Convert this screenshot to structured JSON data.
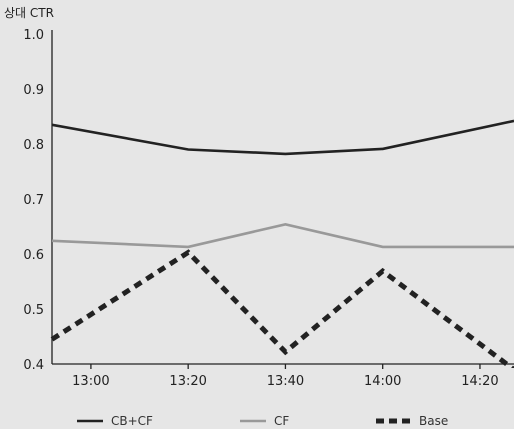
{
  "chart_data": {
    "type": "line",
    "ylabel": "상대 CTR",
    "xlabel": "",
    "x": [
      "13:00",
      "13:20",
      "13:40",
      "14:00",
      "14:20"
    ],
    "x_range": [
      "12:52",
      "14:27"
    ],
    "ylim": [
      0.4,
      1.0
    ],
    "yticks": [
      "1.0",
      "0.9",
      "0.8",
      "0.7",
      "0.6",
      "0.5",
      "0.4"
    ],
    "grid": false,
    "legend_position": "bottom",
    "series": [
      {
        "name": "CB+CF",
        "color": "#222222",
        "style": "solid",
        "points": [
          [
            "12:52",
            0.835
          ],
          [
            "13:20",
            0.79
          ],
          [
            "13:40",
            0.782
          ],
          [
            "14:00",
            0.791
          ],
          [
            "14:27",
            0.842
          ]
        ]
      },
      {
        "name": "CF",
        "color": "#999999",
        "style": "solid",
        "points": [
          [
            "12:52",
            0.624
          ],
          [
            "13:20",
            0.613
          ],
          [
            "13:40",
            0.654
          ],
          [
            "14:00",
            0.613
          ],
          [
            "14:27",
            0.613
          ]
        ]
      },
      {
        "name": "Base",
        "color": "#222222",
        "style": "dashed",
        "points": [
          [
            "12:52",
            0.445
          ],
          [
            "13:20",
            0.603
          ],
          [
            "13:40",
            0.422
          ],
          [
            "14:00",
            0.569
          ],
          [
            "14:27",
            0.39
          ]
        ]
      }
    ]
  }
}
